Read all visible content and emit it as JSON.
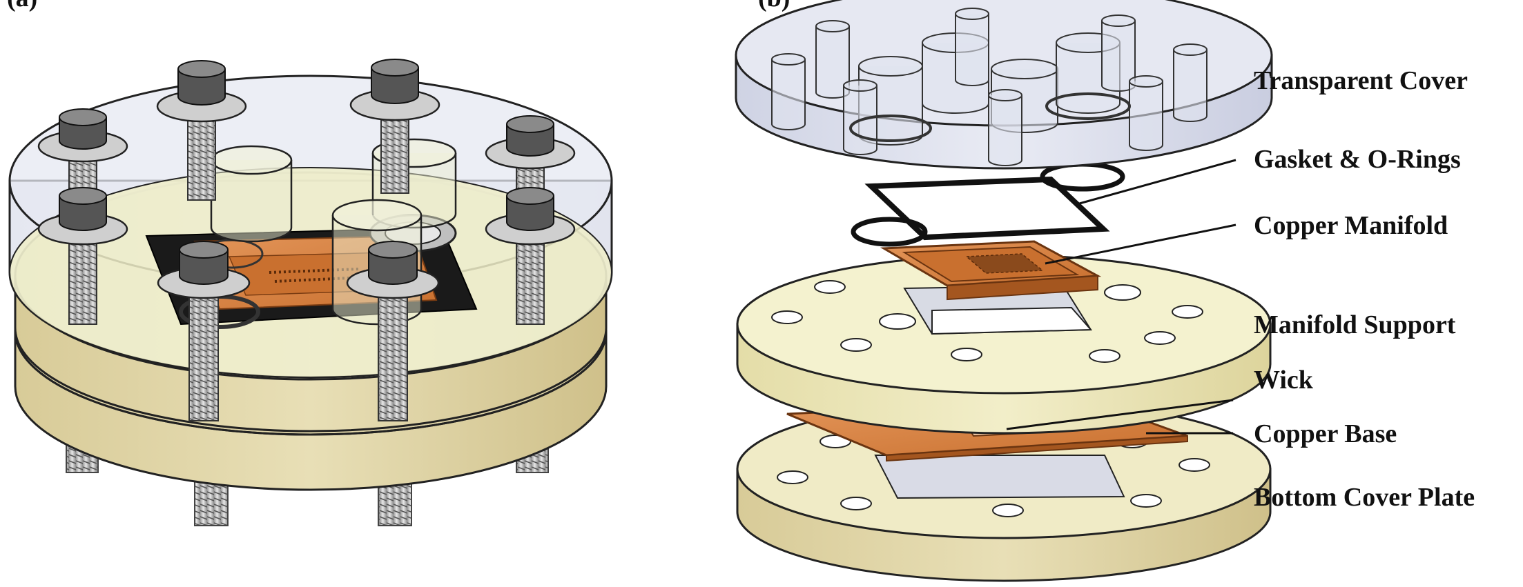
{
  "panels": {
    "a": {
      "tag": "(a)"
    },
    "b": {
      "tag": "(b)"
    }
  },
  "labels": {
    "transparent_cover": "Transparent Cover",
    "gasket_orings": "Gasket & O-Rings",
    "copper_manifold": "Copper Manifold",
    "manifold_support": "Manifold Support",
    "wick": "Wick",
    "copper_base": "Copper Base",
    "bottom_cover_plate": "Bottom Cover Plate"
  },
  "colors": {
    "cream": "#f3f1c9",
    "cream_side": "#e2dba4",
    "tan": "#dccfa0",
    "tan_dark": "#cbbd86",
    "glass": "#dde1ef",
    "glass_edge": "#9aa0b4",
    "copper": "#d98445",
    "copper_dark": "#b3622a",
    "dark": "#151515",
    "bolt": "#bcbcbc"
  }
}
